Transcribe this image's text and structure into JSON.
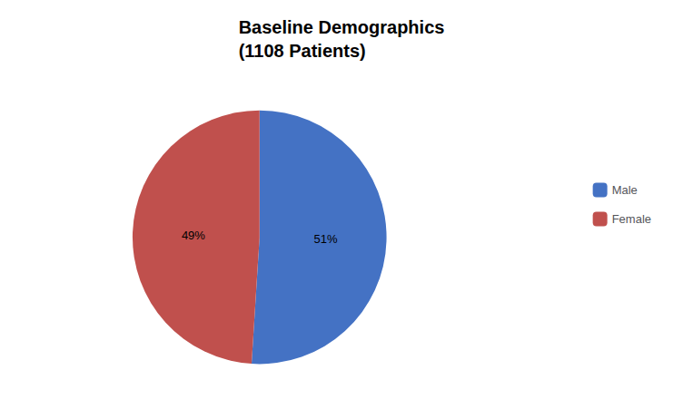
{
  "chart_data": {
    "type": "pie",
    "title": "Baseline Demographics\n(1108 Patients)",
    "categories": [
      "Male",
      "Female"
    ],
    "values": [
      51,
      49
    ],
    "value_labels": [
      "51%",
      "49%"
    ],
    "colors": [
      "#4472C4",
      "#C0504D"
    ],
    "data_labels": true,
    "legend": "right"
  }
}
